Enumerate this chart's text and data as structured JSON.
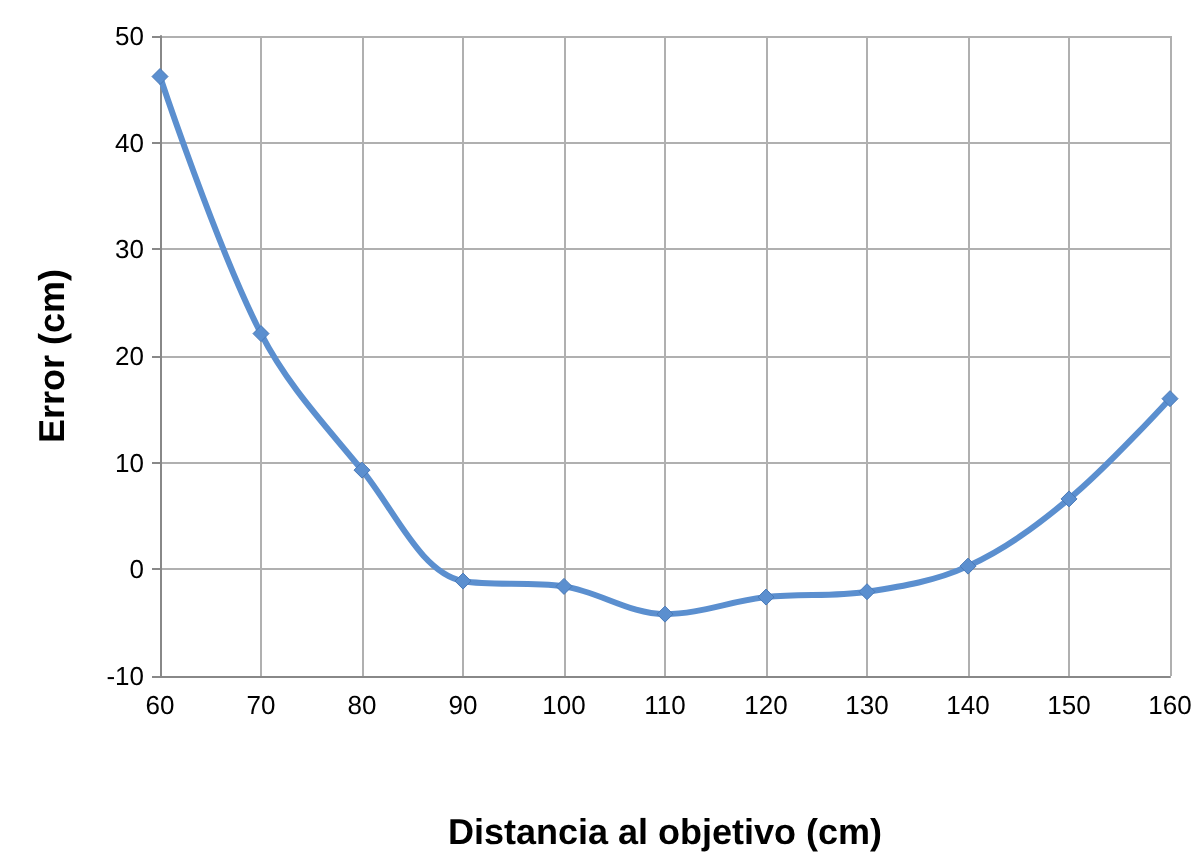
{
  "chart_data": {
    "type": "line",
    "xlabel": "Distancia al objetivo (cm)",
    "ylabel": "Error (cm)",
    "x": [
      60,
      70,
      80,
      90,
      100,
      110,
      120,
      130,
      140,
      150,
      160
    ],
    "series": [
      {
        "color": "#5b8fcf",
        "values": [
          46.2,
          22.1,
          9.3,
          -1.1,
          -1.6,
          -4.2,
          -2.6,
          -2.1,
          0.3,
          6.6,
          16.0
        ]
      }
    ],
    "xlim": [
      60,
      160
    ],
    "xticks": [
      60,
      70,
      80,
      90,
      100,
      110,
      120,
      130,
      140,
      150,
      160
    ],
    "ylim": [
      -10,
      50
    ],
    "yticks": [
      -10,
      0,
      10,
      20,
      30,
      40,
      50
    ],
    "grid": true,
    "marker": "diamond",
    "line_style": "solid"
  }
}
